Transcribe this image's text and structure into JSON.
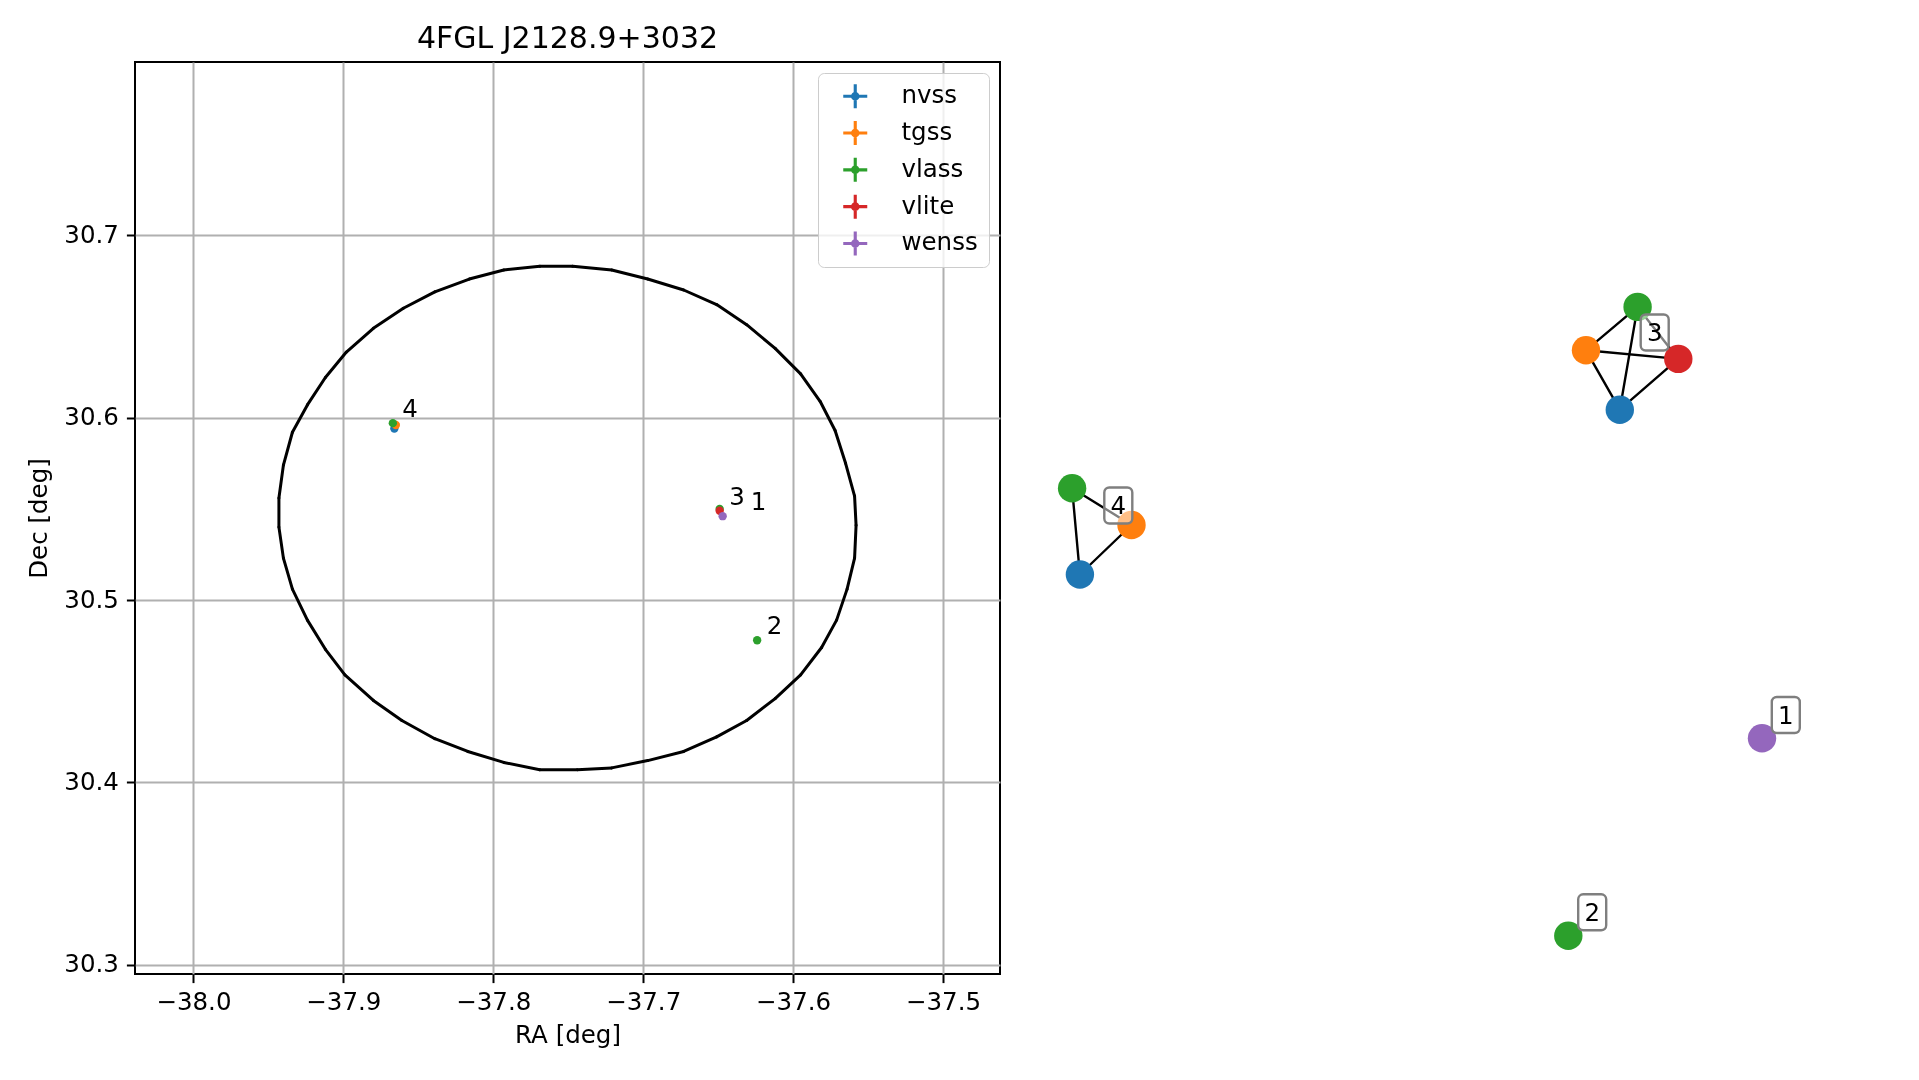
{
  "chart_data": [
    {
      "type": "scatter",
      "title": "4FGL J2128.9+3032",
      "xlabel": "RA [deg]",
      "ylabel": "Dec [deg]",
      "xlim": [
        -38.039,
        -37.462
      ],
      "ylim": [
        30.295,
        30.795
      ],
      "xticks": [
        {
          "value": -38.0,
          "label": "−38.0"
        },
        {
          "value": -37.9,
          "label": "−37.9"
        },
        {
          "value": -37.8,
          "label": "−37.8"
        },
        {
          "value": -37.7,
          "label": "−37.7"
        },
        {
          "value": -37.6,
          "label": "−37.6"
        },
        {
          "value": -37.5,
          "label": "−37.5"
        }
      ],
      "yticks": [
        30.3,
        30.4,
        30.5,
        30.6,
        30.7
      ],
      "grid": true,
      "legend": "top right",
      "marker": "circle",
      "series": [
        {
          "name": "nvss",
          "color": "#1f77b4",
          "x": [
            -37.866
          ],
          "values": [
            30.594
          ]
        },
        {
          "name": "tgss",
          "color": "#ff7f0e",
          "x": [
            -37.865
          ],
          "values": [
            30.596
          ]
        },
        {
          "name": "vlass",
          "color": "#2ca02c",
          "x": [
            -37.867,
            -37.649,
            -37.624
          ],
          "values": [
            30.597,
            30.55,
            30.478
          ]
        },
        {
          "name": "vlite",
          "color": "#d62728",
          "x": [
            -37.649
          ],
          "values": [
            30.549
          ]
        },
        {
          "name": "wenss",
          "color": "#9467bd",
          "x": [
            -37.647
          ],
          "values": [
            30.546
          ]
        }
      ],
      "annotations": [
        {
          "text": "4",
          "x": -37.867,
          "y": 30.597
        },
        {
          "text": "3",
          "x": -37.649,
          "y": 30.549
        },
        {
          "text": "1",
          "x": -37.647,
          "y": 30.546
        },
        {
          "text": "2",
          "x": -37.624,
          "y": 30.478
        }
      ]
    },
    {
      "type": "other",
      "annotations": [
        "1",
        "2",
        "3",
        "4"
      ]
    }
  ]
}
